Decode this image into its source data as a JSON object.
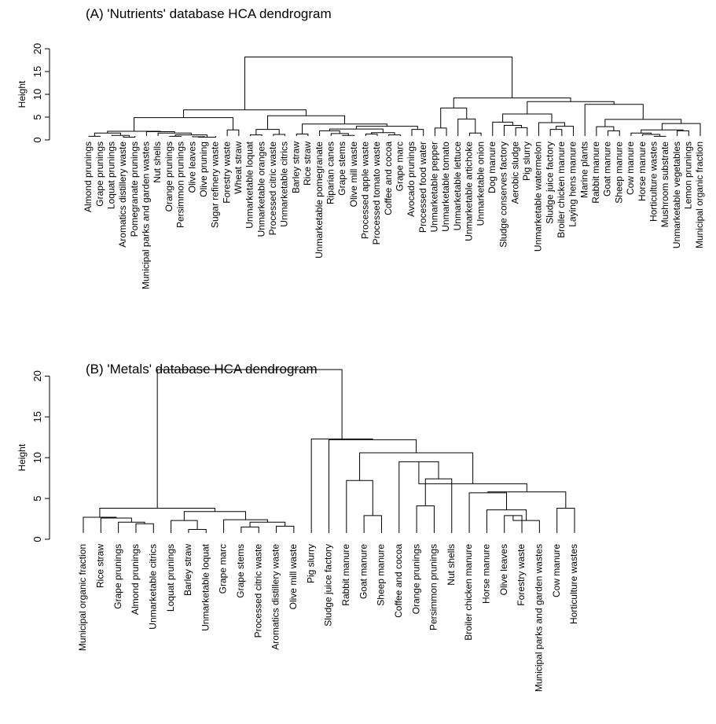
{
  "chart_data": [
    {
      "type": "dendrogram",
      "title": "(A) 'Nutrients' database HCA dendrogram",
      "ylabel": "Height",
      "ylim": [
        0,
        20
      ],
      "yticks": [
        0,
        5,
        10,
        15,
        20
      ],
      "leaves": [
        "Almond prunings",
        "Grape prunings",
        "Loquat prunings",
        "Aromatics distillery waste",
        "Pomegranate prunings",
        "Municipal parks and garden wastes",
        "Nut shells",
        "Orange prunings",
        "Persimmon prunings",
        "Olive leaves",
        "Olive pruning",
        "Sugar refinery waste",
        "Forestry waste",
        "Wheat straw",
        "Unmarketable loquat",
        "Unmarketable oranges",
        "Processed citric waste",
        "Unmarketable citrics",
        "Barley straw",
        "Rice straw",
        "Unmarketable pomegranate",
        "Riparian canes",
        "Grape stems",
        "Olive mill waste",
        "Processed apple waste",
        "Processed tomato waste",
        "Coffee and cocoa",
        "Grape marc",
        "Avocado prunings",
        "Processed food water",
        "Unmarketable pepper",
        "Unmarketable tomato",
        "Unmarketable lettuce",
        "Unmarketable artichoke",
        "Unmarketable onion",
        "Dog manure",
        "Sludge conserves factory",
        "Aerobic sludge",
        "Pig slurry",
        "Unmarketable watermelon",
        "Sludge juice factory",
        "Broiler chicken manure",
        "Laying hens manure",
        "Marine plants",
        "Rabbit manure",
        "Goat manure",
        "Sheep manure",
        "Cow manure",
        "Horse manure",
        "Horticulture wastes",
        "Mushroom substrate",
        "Unmarketable vegetables",
        "Lemon prunings",
        "Municipal organic fraction"
      ],
      "merges": [
        [
          [
            "l",
            0
          ],
          [
            "l",
            1
          ],
          0.8
        ],
        [
          [
            "l",
            3
          ],
          [
            "l",
            4
          ],
          0.6
        ],
        [
          [
            "l",
            2
          ],
          [
            "n",
            1
          ],
          1.0
        ],
        [
          [
            "n",
            0
          ],
          [
            "n",
            2
          ],
          1.5
        ],
        [
          [
            "l",
            7
          ],
          [
            "l",
            8
          ],
          0.8
        ],
        [
          [
            "l",
            9
          ],
          [
            "l",
            10
          ],
          0.7
        ],
        [
          [
            "l",
            11
          ],
          [
            "n",
            5
          ],
          0.6
        ],
        [
          [
            "n",
            4
          ],
          [
            "n",
            6
          ],
          1.1
        ],
        [
          [
            "l",
            6
          ],
          [
            "n",
            7
          ],
          1.5
        ],
        [
          [
            "l",
            5
          ],
          [
            "n",
            8
          ],
          1.8
        ],
        [
          [
            "n",
            3
          ],
          [
            "n",
            9
          ],
          1.9
        ],
        [
          [
            "l",
            12
          ],
          [
            "l",
            13
          ],
          2.2
        ],
        [
          [
            "n",
            10
          ],
          [
            "n",
            11
          ],
          4.9
        ],
        [
          [
            "l",
            14
          ],
          [
            "l",
            15
          ],
          1.1
        ],
        [
          [
            "l",
            16
          ],
          [
            "l",
            17
          ],
          1.2
        ],
        [
          [
            "n",
            13
          ],
          [
            "n",
            14
          ],
          2.3
        ],
        [
          [
            "l",
            18
          ],
          [
            "l",
            19
          ],
          1.3
        ],
        [
          [
            "l",
            22
          ],
          [
            "l",
            23
          ],
          1.0
        ],
        [
          [
            "l",
            21
          ],
          [
            "n",
            17
          ],
          1.4
        ],
        [
          [
            "l",
            20
          ],
          [
            "n",
            18
          ],
          2.0
        ],
        [
          [
            "l",
            24
          ],
          [
            "l",
            25
          ],
          1.3
        ],
        [
          [
            "l",
            26
          ],
          [
            "l",
            27
          ],
          1.1
        ],
        [
          [
            "n",
            20
          ],
          [
            "n",
            21
          ],
          1.6
        ],
        [
          [
            "n",
            19
          ],
          [
            "n",
            22
          ],
          2.4
        ],
        [
          [
            "l",
            28
          ],
          [
            "l",
            29
          ],
          2.3
        ],
        [
          [
            "n",
            23
          ],
          [
            "n",
            24
          ],
          3.0
        ],
        [
          [
            "n",
            16
          ],
          [
            "n",
            25
          ],
          3.5
        ],
        [
          [
            "n",
            15
          ],
          [
            "n",
            26
          ],
          5.3
        ],
        [
          [
            "n",
            12
          ],
          [
            "n",
            27
          ],
          6.6
        ],
        [
          [
            "l",
            30
          ],
          [
            "l",
            31
          ],
          2.6
        ],
        [
          [
            "l",
            33
          ],
          [
            "l",
            34
          ],
          1.5
        ],
        [
          [
            "l",
            32
          ],
          [
            "n",
            30
          ],
          4.6
        ],
        [
          [
            "n",
            29
          ],
          [
            "n",
            31
          ],
          7.0
        ],
        [
          [
            "l",
            37
          ],
          [
            "l",
            38
          ],
          2.7
        ],
        [
          [
            "l",
            36
          ],
          [
            "n",
            33
          ],
          3.2
        ],
        [
          [
            "l",
            35
          ],
          [
            "n",
            34
          ],
          3.9
        ],
        [
          [
            "l",
            40
          ],
          [
            "l",
            41
          ],
          2.3
        ],
        [
          [
            "n",
            36
          ],
          [
            "l",
            42
          ],
          3.0
        ],
        [
          [
            "l",
            39
          ],
          [
            "n",
            37
          ],
          3.8
        ],
        [
          [
            "n",
            35
          ],
          [
            "n",
            38
          ],
          5.7
        ],
        [
          [
            "l",
            45
          ],
          [
            "l",
            46
          ],
          2.0
        ],
        [
          [
            "l",
            44
          ],
          [
            "n",
            40
          ],
          2.9
        ],
        [
          [
            "l",
            49
          ],
          [
            "l",
            50
          ],
          0.8
        ],
        [
          [
            "l",
            48
          ],
          [
            "n",
            42
          ],
          1.2
        ],
        [
          [
            "l",
            47
          ],
          [
            "n",
            43
          ],
          1.5
        ],
        [
          [
            "l",
            51
          ],
          [
            "l",
            52
          ],
          2.0
        ],
        [
          [
            "n",
            44
          ],
          [
            "n",
            45
          ],
          2.2
        ],
        [
          [
            "n",
            46
          ],
          [
            "l",
            53
          ],
          3.6
        ],
        [
          [
            "n",
            41
          ],
          [
            "n",
            47
          ],
          4.5
        ],
        [
          [
            "l",
            43
          ],
          [
            "n",
            48
          ],
          7.8
        ],
        [
          [
            "n",
            39
          ],
          [
            "n",
            49
          ],
          8.4
        ],
        [
          [
            "n",
            32
          ],
          [
            "n",
            50
          ],
          9.2
        ],
        [
          [
            "n",
            28
          ],
          [
            "n",
            51
          ],
          18.2
        ]
      ]
    },
    {
      "type": "dendrogram",
      "title": "(B) 'Metals' database HCA dendrogram",
      "ylabel": "Height",
      "ylim": [
        0,
        21
      ],
      "yticks": [
        0,
        5,
        10,
        15,
        20
      ],
      "leaves": [
        "Municipal organic fraction",
        "Rice straw",
        "Grape prunings",
        "Almond prunings",
        "Unmarketable citrics",
        "Loquat prunings",
        "Barley straw",
        "Unmarketable loquat",
        "Grape marc",
        "Grape stems",
        "Processed citric waste",
        "Aromatics distillery waste",
        "Olive mill waste",
        "Pig slurry",
        "Sludge juice factory",
        "Rabbit manure",
        "Goat manure",
        "Sheep manure",
        "Coffee and cocoa",
        "Orange prunings",
        "Persimmon prunings",
        "Nut shells",
        "Broiler chicken manure",
        "Horse manure",
        "Olive leaves",
        "Forestry waste",
        "Municipal parks and garden wastes",
        "Cow manure",
        "Horticulture wastes"
      ],
      "merges": [
        [
          [
            "l",
            3
          ],
          [
            "l",
            4
          ],
          1.9
        ],
        [
          [
            "l",
            2
          ],
          [
            "n",
            0
          ],
          2.1
        ],
        [
          [
            "l",
            1
          ],
          [
            "n",
            1
          ],
          2.6
        ],
        [
          [
            "l",
            0
          ],
          [
            "n",
            2
          ],
          2.7
        ],
        [
          [
            "l",
            6
          ],
          [
            "l",
            7
          ],
          1.2
        ],
        [
          [
            "l",
            5
          ],
          [
            "n",
            4
          ],
          2.3
        ],
        [
          [
            "l",
            9
          ],
          [
            "l",
            10
          ],
          1.5
        ],
        [
          [
            "l",
            11
          ],
          [
            "l",
            12
          ],
          1.6
        ],
        [
          [
            "n",
            6
          ],
          [
            "n",
            7
          ],
          2.1
        ],
        [
          [
            "n",
            8
          ],
          [
            "l",
            8
          ],
          2.4
        ],
        [
          [
            "n",
            5
          ],
          [
            "n",
            9
          ],
          3.4
        ],
        [
          [
            "n",
            3
          ],
          [
            "n",
            10
          ],
          3.8
        ],
        [
          [
            "l",
            16
          ],
          [
            "l",
            17
          ],
          2.9
        ],
        [
          [
            "l",
            15
          ],
          [
            "n",
            12
          ],
          7.2
        ],
        [
          [
            "l",
            19
          ],
          [
            "l",
            20
          ],
          4.1
        ],
        [
          [
            "l",
            21
          ],
          [
            "n",
            14
          ],
          7.4
        ],
        [
          [
            "l",
            18
          ],
          [
            "n",
            15
          ],
          9.5
        ],
        [
          [
            "l",
            24
          ],
          [
            "l",
            25
          ],
          2.9
        ],
        [
          [
            "n",
            17
          ],
          [
            "l",
            26
          ],
          2.3
        ],
        [
          [
            "l",
            23
          ],
          [
            "n",
            18
          ],
          3.6
        ],
        [
          [
            "n",
            19
          ],
          [
            "l",
            22
          ],
          5.7
        ],
        [
          [
            "l",
            27
          ],
          [
            "l",
            28
          ],
          3.8
        ],
        [
          [
            "n",
            20
          ],
          [
            "n",
            21
          ],
          5.8
        ],
        [
          [
            "n",
            16
          ],
          [
            "n",
            22
          ],
          6.8
        ],
        [
          [
            "n",
            13
          ],
          [
            "n",
            23
          ],
          10.6
        ],
        [
          [
            "n",
            24
          ],
          [
            "l",
            14
          ],
          12.2
        ],
        [
          [
            "l",
            13
          ],
          [
            "n",
            25
          ],
          12.3
        ],
        [
          [
            "n",
            11
          ],
          [
            "n",
            26
          ],
          20.8
        ]
      ]
    }
  ]
}
